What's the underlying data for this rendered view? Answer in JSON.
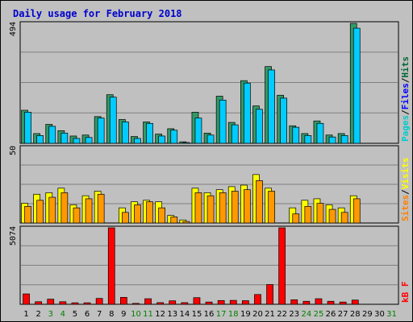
{
  "chart_data": {
    "type": "bar",
    "title": "Daily usage for February 2018",
    "days": [
      "1",
      "2",
      "3",
      "4",
      "5",
      "6",
      "7",
      "8",
      "9",
      "10",
      "11",
      "12",
      "13",
      "14",
      "15",
      "16",
      "17",
      "18",
      "19",
      "20",
      "21",
      "22",
      "23",
      "24",
      "25",
      "26",
      "27",
      "28",
      "29",
      "30",
      "31"
    ],
    "weekend_days": [
      3,
      4,
      10,
      11,
      17,
      18,
      24,
      25,
      31
    ],
    "panels": [
      {
        "ymax_label": "494",
        "max": 494,
        "side_labels": [
          "Pages",
          "/",
          "Files",
          "/",
          "Hits"
        ],
        "side_colors": [
          "#00cccc",
          "#000000",
          "#0000ff",
          "#000000",
          "#006633"
        ],
        "series": [
          {
            "name": "Hits",
            "color": "#339966",
            "values": [
              136,
              40,
              78,
              52,
              30,
              34,
              110,
              200,
              98,
              28,
              88,
              38,
              60,
              6,
              128,
              42,
              194,
              86,
              258,
              154,
              316,
              198,
              72,
              40,
              92,
              34,
              40,
              494
            ]
          },
          {
            "name": "Files",
            "color": "#00ccff",
            "values": [
              128,
              32,
              70,
              42,
              20,
              24,
              104,
              190,
              88,
              20,
              82,
              30,
              54,
              2,
              104,
              34,
              178,
              76,
              248,
              140,
              302,
              186,
              66,
              32,
              82,
              26,
              32,
              474
            ]
          }
        ]
      },
      {
        "ymax_label": "50",
        "max": 50,
        "side_labels": [
          "Sites",
          "/",
          "Visits"
        ],
        "side_colors": [
          "#ff8000",
          "#000000",
          "#ffff00"
        ],
        "series": [
          {
            "name": "Visits",
            "color": "#ffff00",
            "values": [
              13,
              19,
              20,
              23,
              12,
              18,
              21,
              0,
              10,
              14,
              15,
              14,
              5,
              2,
              23,
              20,
              22,
              24,
              25,
              32,
              23,
              0,
              10,
              15,
              16,
              12,
              10,
              18
            ]
          },
          {
            "name": "Sites",
            "color": "#ff9900",
            "values": [
              11,
              15,
              17,
              20,
              10,
              16,
              19,
              0,
              7,
              12,
              14,
              10,
              4,
              1,
              20,
              18,
              20,
              21,
              22,
              28,
              21,
              0,
              6,
              11,
              13,
              9,
              7,
              16
            ]
          }
        ]
      },
      {
        "ymax_label": "5074",
        "max": 5074,
        "side_labels": [
          "kB F"
        ],
        "side_colors": [
          "#ff0000"
        ],
        "series": [
          {
            "name": "kB F",
            "color": "#ff0000",
            "values": [
              690,
              170,
              340,
              170,
              100,
              100,
              390,
              5074,
              460,
              60,
              370,
              110,
              230,
              110,
              440,
              150,
              250,
              260,
              240,
              650,
              1310,
              5074,
              300,
              200,
              370,
              200,
              150,
              280,
              0,
              0,
              0
            ]
          }
        ]
      }
    ]
  }
}
